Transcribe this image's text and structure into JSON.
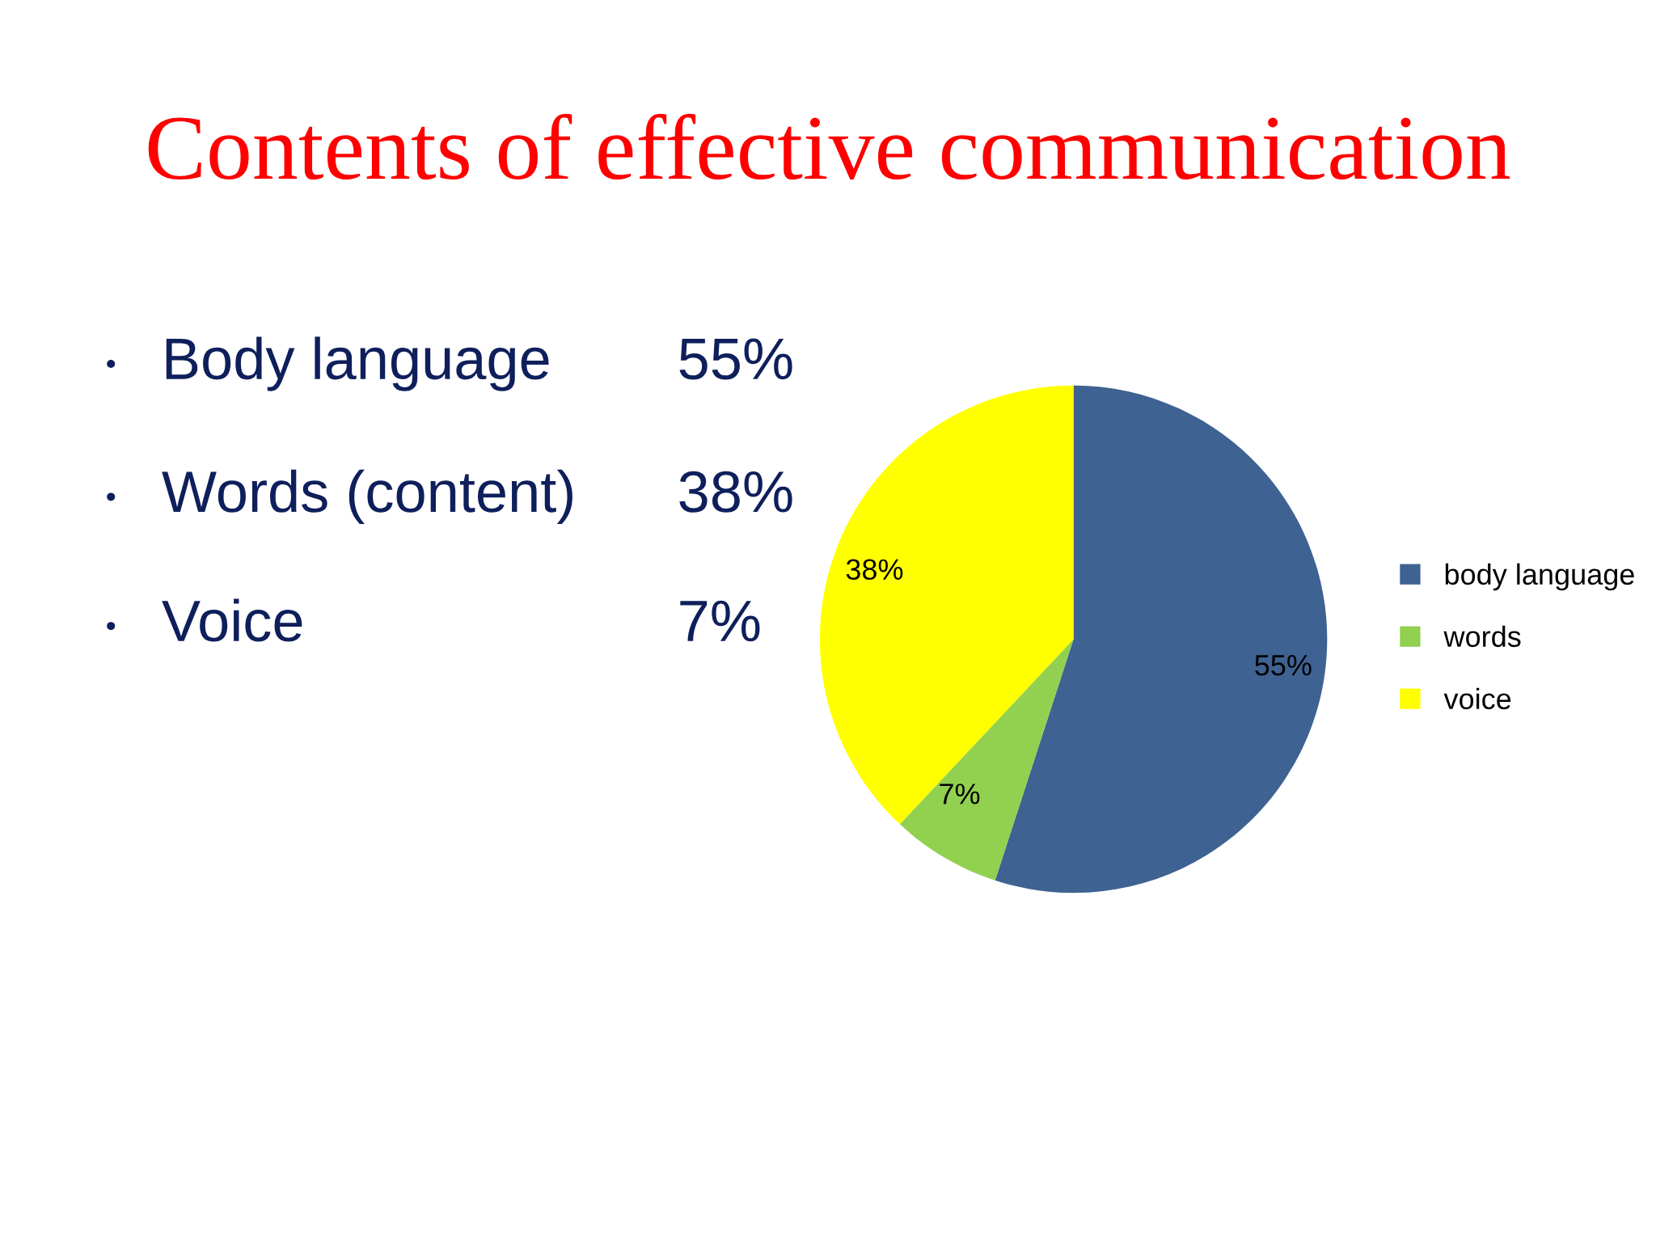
{
  "chart_data": {
    "type": "pie",
    "title": "Contents of effective communication",
    "categories": [
      "body language",
      "words",
      "voice"
    ],
    "values": [
      55,
      7,
      38
    ],
    "colors": [
      "#3e6291",
      "#92d050",
      "#ffff00"
    ],
    "value_labels": [
      "55%",
      "7%",
      "38%"
    ],
    "legend": "right",
    "annotations": [
      "Body language",
      "55%",
      "Words (content)",
      "38%",
      "Voice",
      "7%"
    ]
  }
}
